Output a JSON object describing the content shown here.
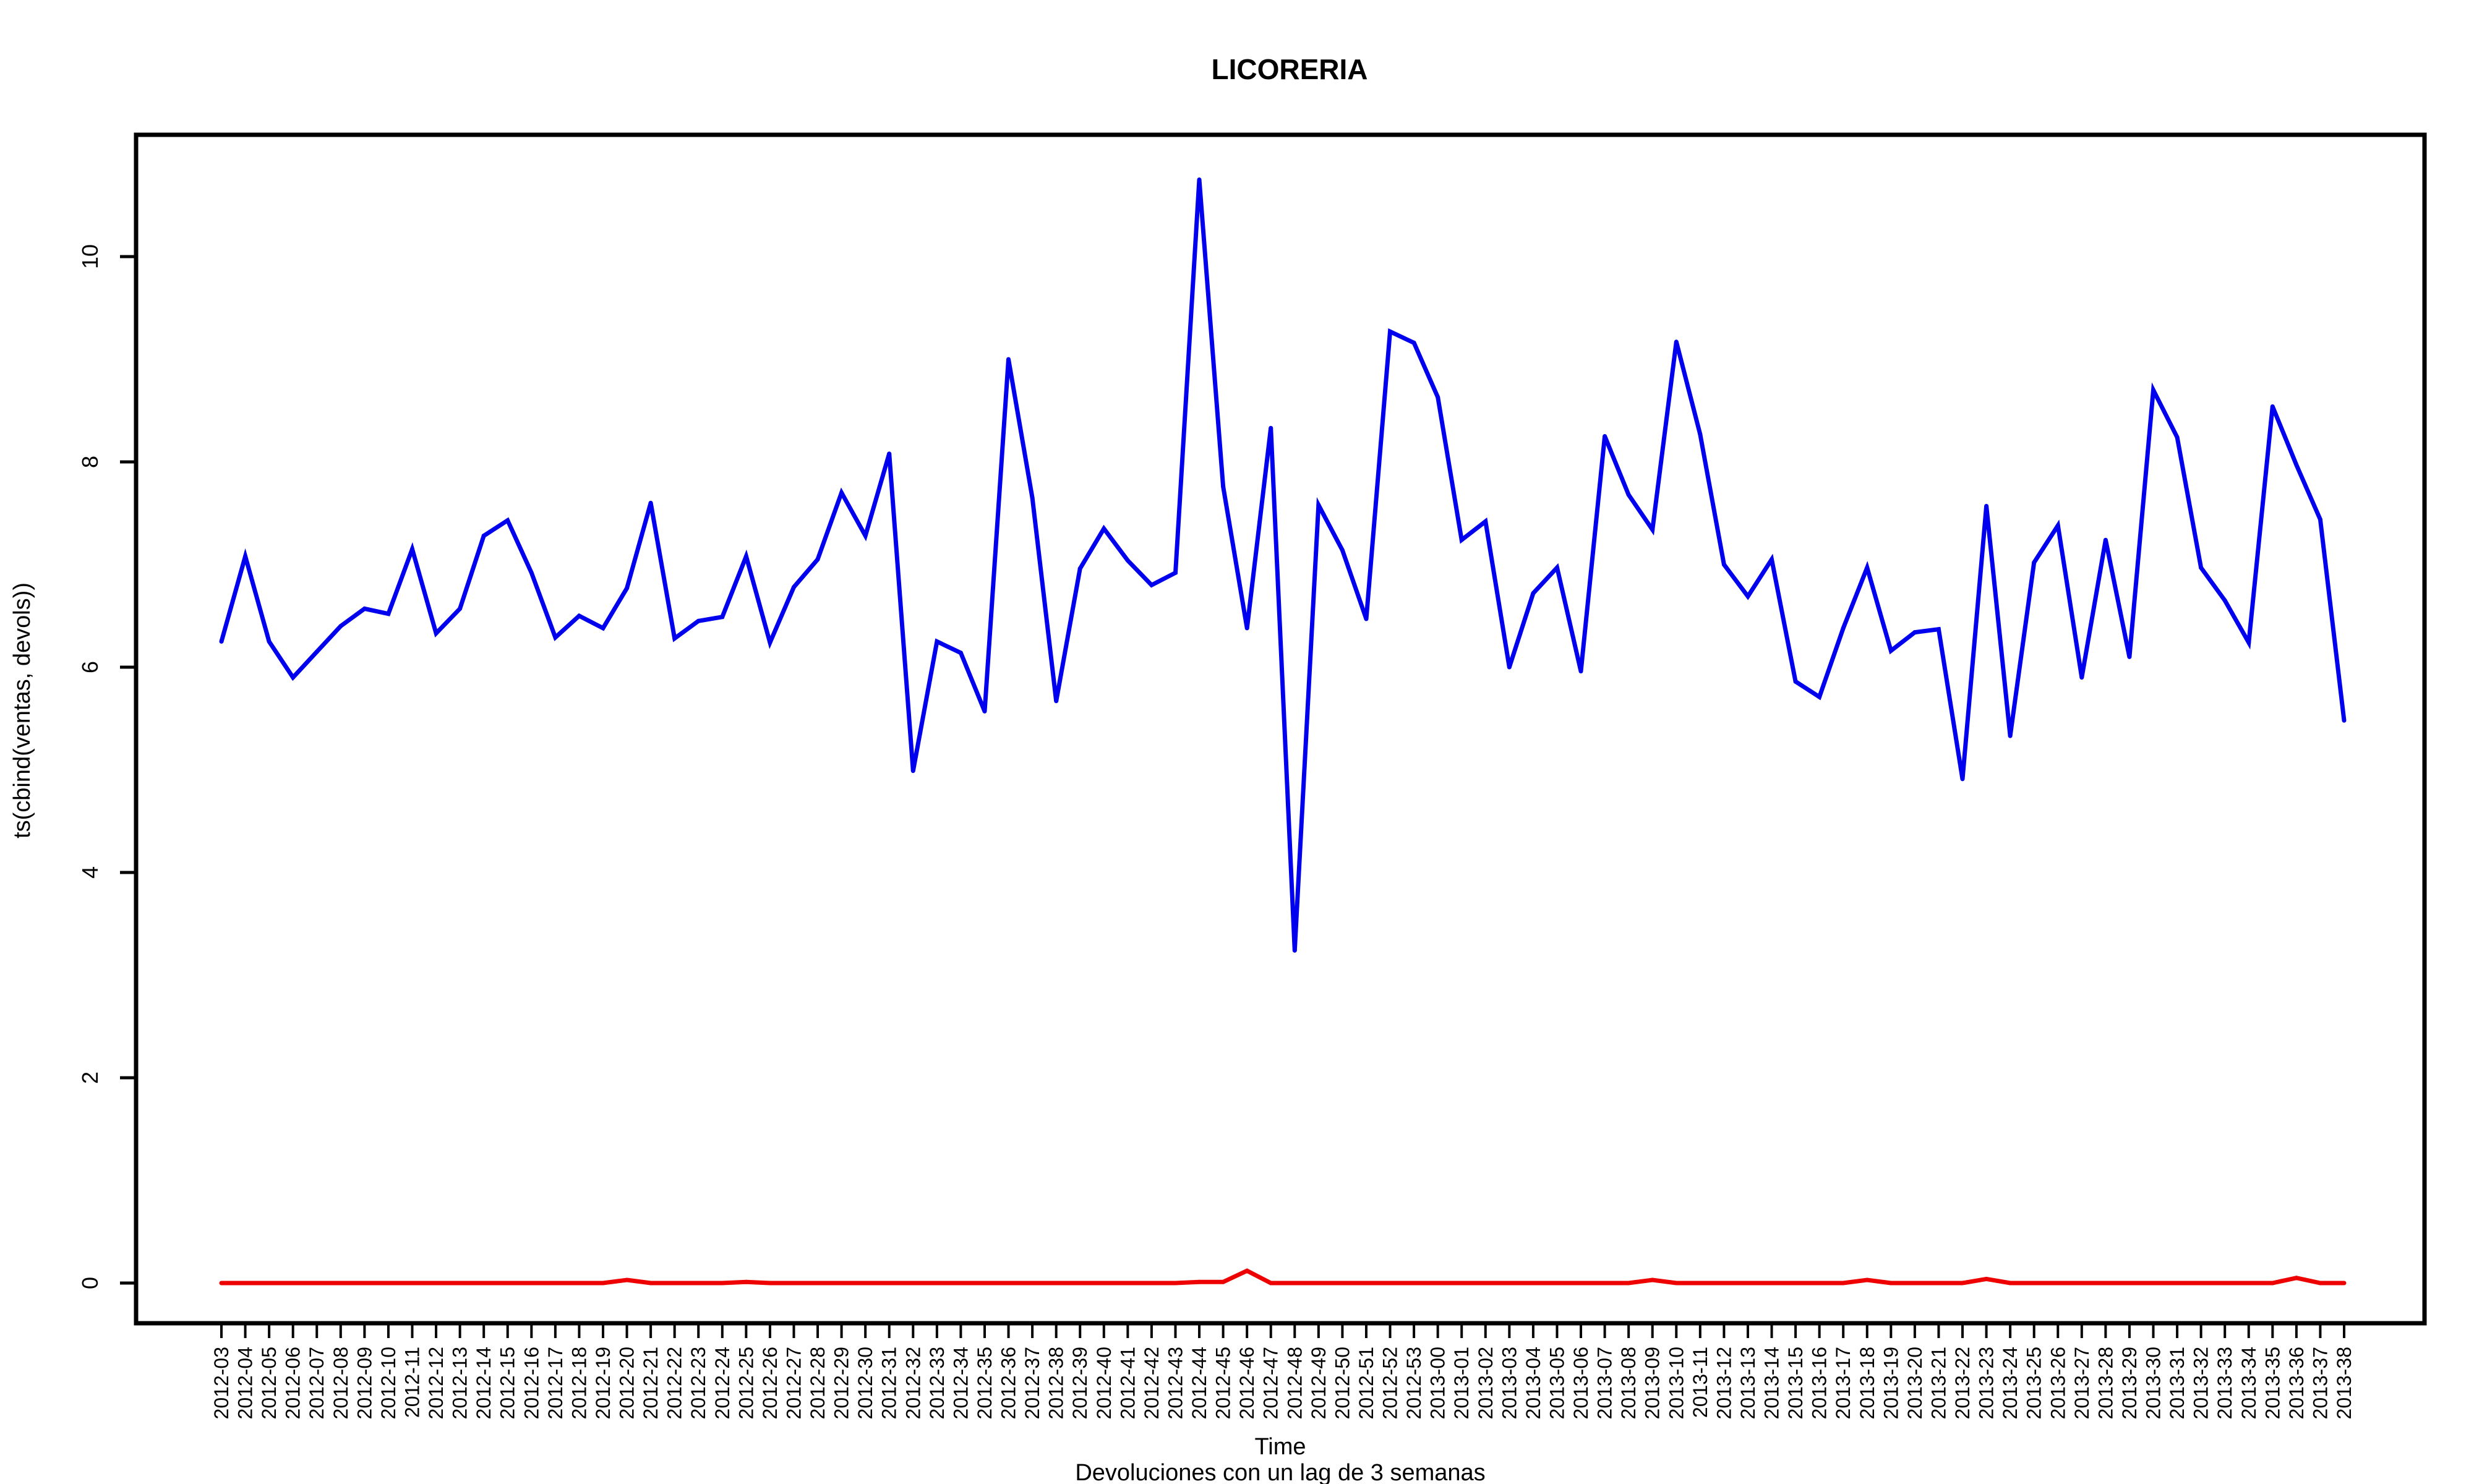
{
  "chart_data": {
    "type": "line",
    "title": "LICORERIA",
    "xlabel": "Time",
    "ylabel": "ts(cbind(ventas, devols))",
    "subtitle": "Devoluciones con un lag de 3 semanas",
    "ylim": [
      -0.4,
      11.2
    ],
    "yticks": [
      0,
      2,
      4,
      6,
      8,
      10
    ],
    "grid": false,
    "legend": "none",
    "categories": [
      "2012-03",
      "2012-04",
      "2012-05",
      "2012-06",
      "2012-07",
      "2012-08",
      "2012-09",
      "2012-10",
      "2012-11",
      "2012-12",
      "2012-13",
      "2012-14",
      "2012-15",
      "2012-16",
      "2012-17",
      "2012-18",
      "2012-19",
      "2012-20",
      "2012-21",
      "2012-22",
      "2012-23",
      "2012-24",
      "2012-25",
      "2012-26",
      "2012-27",
      "2012-28",
      "2012-29",
      "2012-30",
      "2012-31",
      "2012-32",
      "2012-33",
      "2012-34",
      "2012-35",
      "2012-36",
      "2012-37",
      "2012-38",
      "2012-39",
      "2012-40",
      "2012-41",
      "2012-42",
      "2012-43",
      "2012-44",
      "2012-45",
      "2012-46",
      "2012-47",
      "2012-48",
      "2012-49",
      "2012-50",
      "2012-51",
      "2012-52",
      "2012-53",
      "2013-00",
      "2013-01",
      "2013-02",
      "2013-03",
      "2013-04",
      "2013-05",
      "2013-06",
      "2013-07",
      "2013-08",
      "2013-09",
      "2013-10",
      "2013-11",
      "2013-12",
      "2013-13",
      "2013-14",
      "2013-15",
      "2013-16",
      "2013-17",
      "2013-18",
      "2013-19",
      "2013-20",
      "2013-21",
      "2013-22",
      "2013-23",
      "2013-24",
      "2013-25",
      "2013-26",
      "2013-27",
      "2013-28",
      "2013-29",
      "2013-30",
      "2013-31",
      "2013-32",
      "2013-33",
      "2013-34",
      "2013-35",
      "2013-36",
      "2013-37",
      "2013-38"
    ],
    "series": [
      {
        "color": "#0000ee",
        "values": [
          6.25,
          7.08,
          6.25,
          5.9,
          6.15,
          6.4,
          6.57,
          6.52,
          7.15,
          6.33,
          6.57,
          7.28,
          7.43,
          6.92,
          6.29,
          6.5,
          6.38,
          6.77,
          7.6,
          6.28,
          6.45,
          6.49,
          7.08,
          6.24,
          6.78,
          7.05,
          7.7,
          7.28,
          8.08,
          4.99,
          6.25,
          6.14,
          5.57,
          9.0,
          7.65,
          5.67,
          6.96,
          7.35,
          7.04,
          6.8,
          6.92,
          10.75,
          7.76,
          6.38,
          8.33,
          3.24,
          7.58,
          7.14,
          6.47,
          9.27,
          9.16,
          8.63,
          7.24,
          7.42,
          6.0,
          6.72,
          6.97,
          5.96,
          8.25,
          7.68,
          7.34,
          9.17,
          8.27,
          7.0,
          6.69,
          7.05,
          5.86,
          5.71,
          6.38,
          6.97,
          6.16,
          6.34,
          6.37,
          4.91,
          7.57,
          5.33,
          7.02,
          7.38,
          5.9,
          7.24,
          6.1,
          8.7,
          8.24,
          6.97,
          6.65,
          6.24,
          8.54,
          7.97,
          7.44,
          5.48
        ]
      },
      {
        "color": "#ee0000",
        "values": [
          0,
          0,
          0,
          0,
          0,
          0,
          0,
          0,
          0,
          0,
          0,
          0,
          0,
          0,
          0,
          0,
          0,
          0.03,
          0,
          0,
          0,
          0,
          0.01,
          0,
          0,
          0,
          0,
          0,
          0,
          0,
          0,
          0,
          0,
          0,
          0,
          0,
          0,
          0,
          0,
          0,
          0,
          0.01,
          0.01,
          0.12,
          0,
          0,
          0,
          0,
          0,
          0,
          0,
          0,
          0,
          0,
          0,
          0,
          0,
          0,
          0,
          0,
          0.03,
          0,
          0,
          0,
          0,
          0,
          0,
          0,
          0,
          0.03,
          0,
          0,
          0,
          0,
          0.04,
          0,
          0,
          0,
          0,
          0,
          0,
          0,
          0,
          0,
          0,
          0,
          0,
          0.05,
          0,
          0
        ]
      }
    ]
  }
}
